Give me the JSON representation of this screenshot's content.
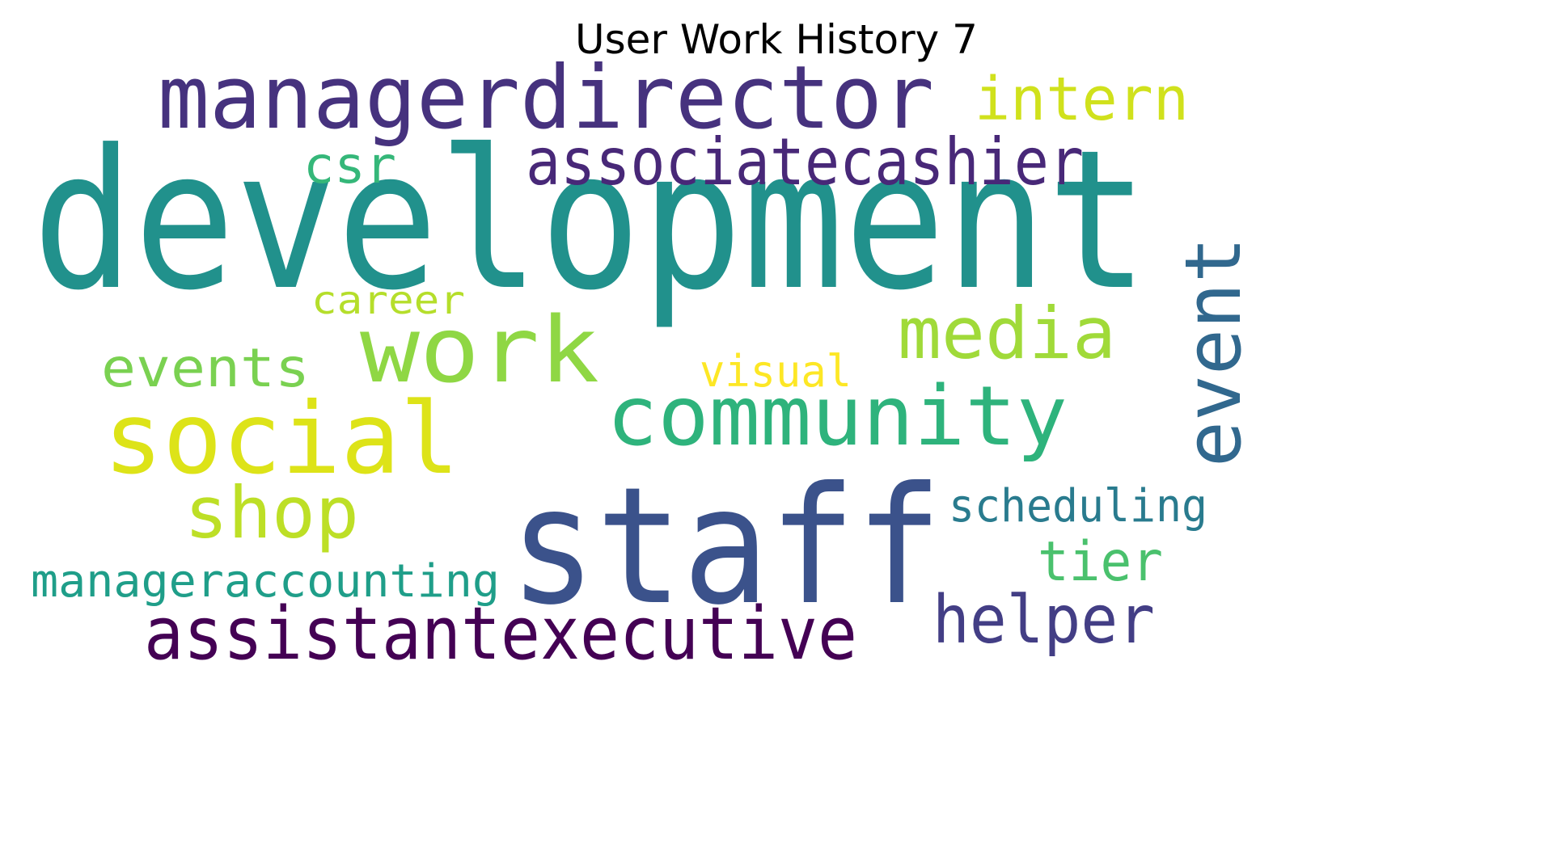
{
  "chart_data": {
    "type": "wordcloud",
    "title": "User Work History 7",
    "colormap": "viridis",
    "background": "#ffffff",
    "words": [
      {
        "text": "development",
        "color": "#21918c"
      },
      {
        "text": "staff",
        "color": "#3b528b"
      },
      {
        "text": "managerdirector",
        "color": "#46327e"
      },
      {
        "text": "social",
        "color": "#dde318"
      },
      {
        "text": "work",
        "color": "#8fd744"
      },
      {
        "text": "community",
        "color": "#2eb37c"
      },
      {
        "text": "assistantexecutive",
        "color": "#440154"
      },
      {
        "text": "associatecashier",
        "color": "#482878"
      },
      {
        "text": "event",
        "color": "#31688e"
      },
      {
        "text": "media",
        "color": "#a0da39"
      },
      {
        "text": "shop",
        "color": "#bddf26"
      },
      {
        "text": "helper",
        "color": "#433e85"
      },
      {
        "text": "intern",
        "color": "#d0e11c"
      },
      {
        "text": "events",
        "color": "#7ad151"
      },
      {
        "text": "manageraccounting",
        "color": "#1f9e89"
      },
      {
        "text": "scheduling",
        "color": "#297b8e"
      },
      {
        "text": "tier",
        "color": "#4ac16d"
      },
      {
        "text": "csr",
        "color": "#35b779"
      },
      {
        "text": "visual",
        "color": "#fde725"
      },
      {
        "text": "career",
        "color": "#b5de2b"
      }
    ]
  }
}
